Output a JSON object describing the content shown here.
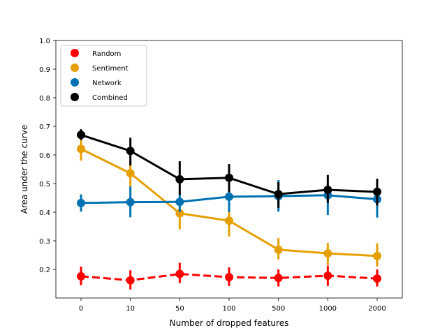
{
  "chart_data": {
    "type": "line",
    "xlabel": "Number of dropped features",
    "ylabel": "Area under the curve",
    "categories": [
      "0",
      "10",
      "50",
      "100",
      "500",
      "1000",
      "2000"
    ],
    "ylim": [
      0.1,
      1.0
    ],
    "yticks": [
      "0.2",
      "0.3",
      "0.4",
      "0.5",
      "0.6",
      "0.7",
      "0.8",
      "0.9",
      "1.0"
    ],
    "grid": false,
    "legend_position": "top-left",
    "series": [
      {
        "name": "Random",
        "color": "#ff0000",
        "dashed": true,
        "values": [
          0.176,
          0.162,
          0.184,
          0.173,
          0.17,
          0.178,
          0.168
        ],
        "err_low": [
          0.145,
          0.13,
          0.152,
          0.142,
          0.14,
          0.142,
          0.14
        ],
        "err_high": [
          0.21,
          0.197,
          0.223,
          0.207,
          0.2,
          0.213,
          0.2
        ]
      },
      {
        "name": "Sentiment",
        "color": "#e69f00",
        "dashed": false,
        "values": [
          0.621,
          0.536,
          0.396,
          0.37,
          0.269,
          0.256,
          0.247
        ],
        "err_low": [
          0.58,
          0.49,
          0.34,
          0.315,
          0.235,
          0.215,
          0.21
        ],
        "err_high": [
          0.66,
          0.58,
          0.432,
          0.407,
          0.31,
          0.292,
          0.291
        ]
      },
      {
        "name": "Network",
        "color": "#0072b2",
        "dashed": false,
        "values": [
          0.432,
          0.435,
          0.436,
          0.454,
          0.456,
          0.459,
          0.445
        ],
        "err_low": [
          0.402,
          0.382,
          0.4,
          0.4,
          0.402,
          0.39,
          0.381
        ],
        "err_high": [
          0.462,
          0.49,
          0.47,
          0.505,
          0.512,
          0.5,
          0.49
        ]
      },
      {
        "name": "Combined",
        "color": "#000000",
        "dashed": false,
        "values": [
          0.67,
          0.614,
          0.515,
          0.52,
          0.463,
          0.478,
          0.471
        ],
        "err_low": [
          0.652,
          0.563,
          0.46,
          0.47,
          0.415,
          0.432,
          0.423
        ],
        "err_high": [
          0.69,
          0.66,
          0.578,
          0.568,
          0.505,
          0.53,
          0.517
        ]
      }
    ]
  }
}
